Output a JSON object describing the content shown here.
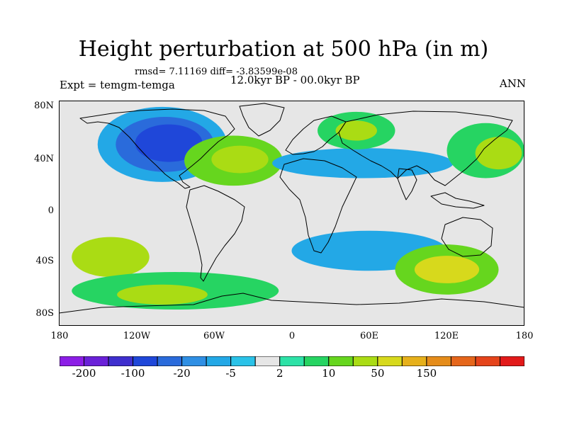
{
  "title": "Height perturbation at 500 hPa (in m)",
  "stats": "rmsd= 7.11169 diff= -3.83599e-08",
  "left_label": "Expt = temgm-temga",
  "center_label": "12.0kyr BP - 00.0kyr BP",
  "right_label": "ANN",
  "lat_labels": [
    "80N",
    "40N",
    "0",
    "40S",
    "80S"
  ],
  "lon_labels": [
    "180",
    "120W",
    "60W",
    "0",
    "60E",
    "120E",
    "180"
  ],
  "colorbar": {
    "colors": [
      "#8c1ee6",
      "#6a21d8",
      "#3f2fce",
      "#1f47d9",
      "#2a6bdb",
      "#2f8fe4",
      "#23a8e6",
      "#2ac2e8",
      "#e6e6e6",
      "#2de2a7",
      "#26d462",
      "#66d61e",
      "#aadc14",
      "#d7d91c",
      "#e6b01b",
      "#e58c1a",
      "#e5661b",
      "#e5441b",
      "#e21a1a"
    ],
    "labels": [
      "-200",
      "-100",
      "-20",
      "-5",
      "2",
      "10",
      "50",
      "150"
    ],
    "label_positions": [
      1,
      3,
      5,
      7,
      9,
      11,
      13,
      15
    ]
  },
  "map_data": {
    "lon_range": [
      -180,
      180
    ],
    "lat_range": [
      -90,
      90
    ],
    "background_level": "2",
    "blobs": [
      {
        "lon": -100,
        "lat": 55,
        "rx": 50,
        "ry": 30,
        "color": "#23a8e6"
      },
      {
        "lon": -98,
        "lat": 55,
        "rx": 38,
        "ry": 22,
        "color": "#2a6bdb"
      },
      {
        "lon": -95,
        "lat": 56,
        "rx": 26,
        "ry": 15,
        "color": "#1f47d9"
      },
      {
        "lon": -45,
        "lat": 42,
        "rx": 38,
        "ry": 20,
        "color": "#66d61e"
      },
      {
        "lon": -40,
        "lat": 43,
        "rx": 22,
        "ry": 11,
        "color": "#aadc14"
      },
      {
        "lon": 55,
        "lat": 40,
        "rx": 70,
        "ry": 12,
        "color": "#23a8e6"
      },
      {
        "lon": 50,
        "lat": 66,
        "rx": 30,
        "ry": 15,
        "color": "#26d462"
      },
      {
        "lon": 50,
        "lat": 66,
        "rx": 16,
        "ry": 8,
        "color": "#aadc14"
      },
      {
        "lon": 150,
        "lat": 50,
        "rx": 30,
        "ry": 22,
        "color": "#26d462"
      },
      {
        "lon": 160,
        "lat": 48,
        "rx": 18,
        "ry": 13,
        "color": "#aadc14"
      },
      {
        "lon": -140,
        "lat": -35,
        "rx": 30,
        "ry": 16,
        "color": "#aadc14"
      },
      {
        "lon": -90,
        "lat": -62,
        "rx": 80,
        "ry": 15,
        "color": "#26d462"
      },
      {
        "lon": -100,
        "lat": -65,
        "rx": 35,
        "ry": 8,
        "color": "#aadc14"
      },
      {
        "lon": 60,
        "lat": -30,
        "rx": 60,
        "ry": 16,
        "color": "#23a8e6"
      },
      {
        "lon": 120,
        "lat": -45,
        "rx": 40,
        "ry": 20,
        "color": "#66d61e"
      },
      {
        "lon": 120,
        "lat": -45,
        "rx": 25,
        "ry": 11,
        "color": "#d7d91c"
      }
    ]
  }
}
